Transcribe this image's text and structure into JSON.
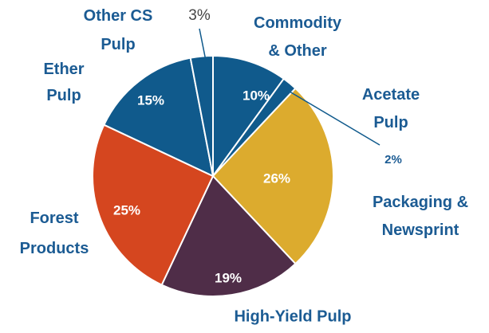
{
  "chart_data": {
    "type": "pie",
    "categories": [
      "Commodity & Other",
      "Acetate Pulp",
      "Packaging & Newsprint",
      "High-Yield Pulp",
      "Forest Products",
      "Ether Pulp",
      "Other CS Pulp"
    ],
    "values": [
      10,
      2,
      26,
      19,
      25,
      15,
      3
    ],
    "value_labels": [
      "10%",
      "2%",
      "26%",
      "19%",
      "25%",
      "15%",
      "3%"
    ],
    "colors": [
      "#105a8c",
      "#105a8c",
      "#dcab2e",
      "#4f2d48",
      "#d5461f",
      "#105a8c",
      "#105a8c"
    ]
  }
}
